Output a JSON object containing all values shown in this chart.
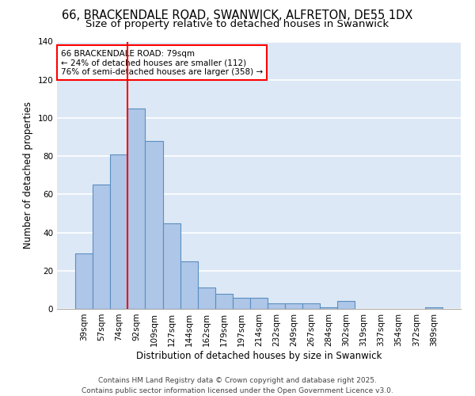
{
  "title_line1": "66, BRACKENDALE ROAD, SWANWICK, ALFRETON, DE55 1DX",
  "title_line2": "Size of property relative to detached houses in Swanwick",
  "xlabel": "Distribution of detached houses by size in Swanwick",
  "ylabel": "Number of detached properties",
  "categories": [
    "39sqm",
    "57sqm",
    "74sqm",
    "92sqm",
    "109sqm",
    "127sqm",
    "144sqm",
    "162sqm",
    "179sqm",
    "197sqm",
    "214sqm",
    "232sqm",
    "249sqm",
    "267sqm",
    "284sqm",
    "302sqm",
    "319sqm",
    "337sqm",
    "354sqm",
    "372sqm",
    "389sqm"
  ],
  "values": [
    29,
    65,
    81,
    105,
    88,
    45,
    25,
    11,
    8,
    6,
    6,
    3,
    3,
    3,
    1,
    4,
    0,
    0,
    0,
    0,
    1
  ],
  "bar_color": "#aec6e8",
  "bar_edge_color": "#5a8fc0",
  "vline_x_index": 2.5,
  "marker_label": "66 BRACKENDALE ROAD: 79sqm",
  "annotation_smaller": "← 24% of detached houses are smaller (112)",
  "annotation_larger": "76% of semi-detached houses are larger (358) →",
  "annotation_box_color": "white",
  "annotation_box_edge_color": "red",
  "vline_color": "red",
  "ylim": [
    0,
    140
  ],
  "yticks": [
    0,
    20,
    40,
    60,
    80,
    100,
    120,
    140
  ],
  "background_color": "#dce8f5",
  "grid_color": "white",
  "footer": "Contains HM Land Registry data © Crown copyright and database right 2025.\nContains public sector information licensed under the Open Government Licence v3.0.",
  "title_fontsize": 10.5,
  "subtitle_fontsize": 9.5,
  "tick_fontsize": 7.5,
  "axis_label_fontsize": 8.5,
  "footer_fontsize": 6.5,
  "annot_fontsize": 7.5
}
